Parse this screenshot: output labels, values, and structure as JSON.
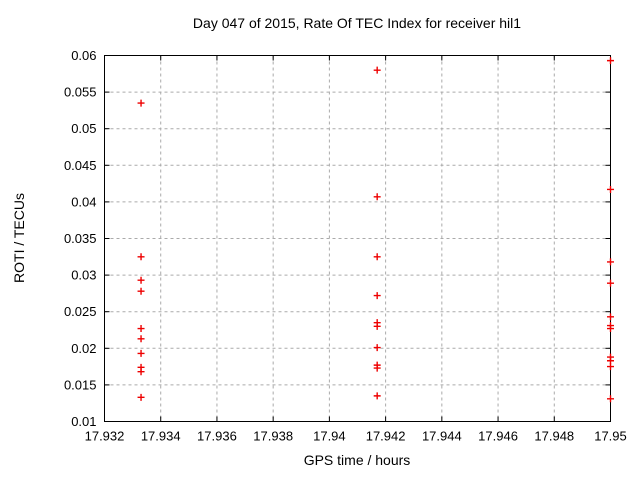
{
  "window": {
    "background_color": "#ffffff",
    "text_color": "#000000"
  },
  "chart_data": {
    "type": "scatter",
    "title": "Day 047 of 2015, Rate Of TEC Index for receiver hil1",
    "xlabel": "GPS time / hours",
    "ylabel": "ROTI / TECUs",
    "xlim": [
      17.932,
      17.95
    ],
    "ylim": [
      0.01,
      0.06
    ],
    "grid": true,
    "legend": "none",
    "marker": "plus",
    "marker_color": "#ee0000",
    "grid_color": "#aaaaaa",
    "axis_color": "#000000",
    "x_tick_values": [
      17.932,
      17.934,
      17.936,
      17.938,
      17.94,
      17.942,
      17.944,
      17.946,
      17.948,
      17.95
    ],
    "x_tick_labels": [
      "17.932",
      "17.934",
      "17.936",
      "17.938",
      "17.94",
      "17.942",
      "17.944",
      "17.946",
      "17.948",
      "17.95"
    ],
    "y_tick_values": [
      0.01,
      0.015,
      0.02,
      0.025,
      0.03,
      0.035,
      0.04,
      0.045,
      0.05,
      0.055,
      0.06
    ],
    "y_tick_labels": [
      "0.01",
      "0.015",
      "0.02",
      "0.025",
      "0.03",
      "0.035",
      "0.04",
      "0.045",
      "0.05",
      "0.055",
      "0.06"
    ],
    "series": [
      {
        "name": "ROTI",
        "points": [
          [
            17.9333,
            0.0535
          ],
          [
            17.9333,
            0.0325
          ],
          [
            17.9333,
            0.0293
          ],
          [
            17.9333,
            0.0278
          ],
          [
            17.9333,
            0.0227
          ],
          [
            17.9333,
            0.0213
          ],
          [
            17.9333,
            0.0193
          ],
          [
            17.9333,
            0.0174
          ],
          [
            17.9333,
            0.0168
          ],
          [
            17.9333,
            0.0133
          ],
          [
            17.9417,
            0.058
          ],
          [
            17.9417,
            0.0407
          ],
          [
            17.9417,
            0.0325
          ],
          [
            17.9417,
            0.0272
          ],
          [
            17.9417,
            0.0235
          ],
          [
            17.9417,
            0.023
          ],
          [
            17.9417,
            0.0201
          ],
          [
            17.9417,
            0.0177
          ],
          [
            17.9417,
            0.0173
          ],
          [
            17.9417,
            0.0135
          ],
          [
            17.95,
            0.0593
          ],
          [
            17.95,
            0.0417
          ],
          [
            17.95,
            0.0318
          ],
          [
            17.95,
            0.0289
          ],
          [
            17.95,
            0.0243
          ],
          [
            17.95,
            0.0231
          ],
          [
            17.95,
            0.0227
          ],
          [
            17.95,
            0.0188
          ],
          [
            17.95,
            0.0183
          ],
          [
            17.95,
            0.0175
          ],
          [
            17.95,
            0.0131
          ]
        ]
      }
    ]
  }
}
